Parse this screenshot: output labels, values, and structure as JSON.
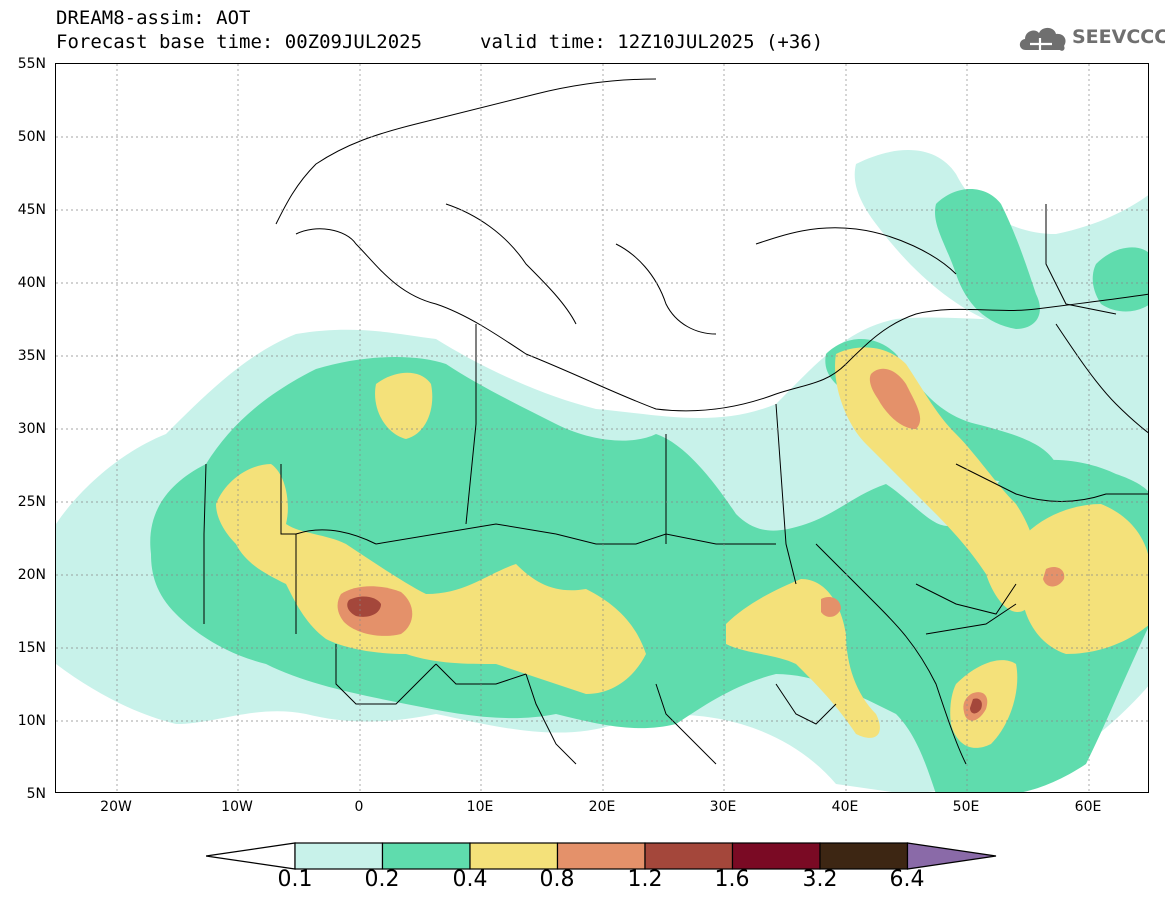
{
  "header": {
    "title": "DREAM8-assim: AOT",
    "base_time": "Forecast base time: 00Z09JUL2025",
    "valid_time": "valid time: 12Z10JUL2025 (+36)"
  },
  "logo": {
    "text": "SEEVCCC",
    "icon": "cloud-icon"
  },
  "map": {
    "region": "North Africa, Mediterranean and Middle East",
    "lat_range": [
      5,
      55
    ],
    "lon_range": [
      -25,
      65
    ],
    "lat_labels": [
      "55N",
      "50N",
      "45N",
      "40N",
      "35N",
      "30N",
      "25N",
      "20N",
      "15N",
      "10N",
      "5N"
    ],
    "lon_labels": [
      "20W",
      "10W",
      "0",
      "10E",
      "20E",
      "30E",
      "40E",
      "50E",
      "60E"
    ],
    "grid_lines": true
  },
  "colorbar": {
    "labels": [
      "0.1",
      "0.2",
      "0.4",
      "0.8",
      "1.2",
      "1.6",
      "3.2",
      "6.4"
    ],
    "colors": [
      "#ffffff",
      "#c8f2ea",
      "#5fdcad",
      "#f4e17a",
      "#e4916a",
      "#a4473b",
      "#7a0a24",
      "#3d2613",
      "#8a6aa8"
    ]
  },
  "level_colors": {
    "l1": "#c8f2ea",
    "l2": "#5fdcad",
    "l3": "#f4e17a",
    "l4": "#e4916a",
    "l5": "#a4473b"
  }
}
